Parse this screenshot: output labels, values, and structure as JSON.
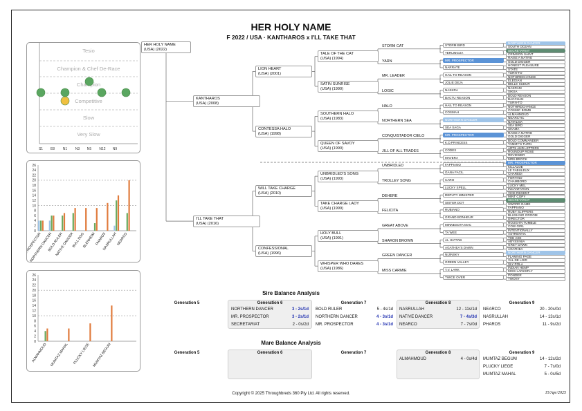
{
  "header": {
    "title": "HER HOLY NAME",
    "subtitle": "F 2022 / USA · KANTHAROS x I'LL TAKE THAT"
  },
  "ratings_chart": {
    "labels": [
      "Tesio",
      "Champion & Chef De-Race",
      "Champion",
      "Competitive",
      "Slow",
      "Very Slow"
    ],
    "x_labels": [
      "S1",
      "E8",
      "N1",
      "N3",
      "N5",
      "N12",
      "N9"
    ]
  },
  "chart_data": [
    {
      "type": "bar",
      "categories": [
        "MR. PROSPECTOR",
        "NORTHERN DANCER",
        "BOLD RULER",
        "NATIVE DANCER",
        "BULL DOG",
        "BLENHEIM",
        "PHAROS",
        "NASRULLAH",
        "NEARCO"
      ],
      "series": [
        {
          "color": "#9fc4e8",
          "values": [
            4,
            4,
            0,
            0,
            0,
            0,
            0,
            2,
            0
          ]
        },
        {
          "color": "#6aaa5e",
          "values": [
            4,
            6,
            6,
            7,
            0,
            3,
            0,
            12,
            7
          ]
        },
        {
          "color": "#e07b3c",
          "values": [
            4,
            6,
            7,
            9,
            9,
            9,
            11,
            14,
            20
          ]
        }
      ],
      "y_ticks": [
        "0",
        "2",
        "4",
        "6",
        "8",
        "10",
        "12",
        "14",
        "16",
        "18",
        "20",
        "22",
        "24",
        "26"
      ],
      "ylim": [
        0,
        26
      ]
    },
    {
      "type": "bar",
      "categories": [
        "ALMAHMOUD",
        "MUMTAZ MAHAL",
        "PLUCKY LIEGE",
        "MUMTAZ BEGUM"
      ],
      "series": [
        {
          "color": "#6aaa5e",
          "values": [
            4,
            0,
            0,
            0
          ]
        },
        {
          "color": "#e07b3c",
          "values": [
            5,
            5,
            7,
            14
          ]
        }
      ],
      "y_ticks": [
        "0",
        "2",
        "4",
        "6",
        "8",
        "10",
        "12",
        "14",
        "16",
        "18",
        "20",
        "22",
        "24",
        "26"
      ],
      "ylim": [
        0,
        26
      ]
    }
  ],
  "pedigree": {
    "subject": {
      "name": "HER HOLY NAME",
      "detail": "(USA) (2022)"
    },
    "sire": {
      "name": "KANTHAROS",
      "detail": "(USA) (2008)"
    },
    "dam": {
      "name": "I'LL TAKE THAT",
      "detail": "(USA) (2016)"
    },
    "gen2": [
      {
        "name": "LION HEART",
        "detail": "(USA) (2001)"
      },
      {
        "name": "CONTESSA HALO",
        "detail": "(USA) (1998)"
      },
      {
        "name": "WILL TAKE CHARGE",
        "detail": "(USA) (2010)"
      },
      {
        "name": "CONFESSIONAL",
        "detail": "(USA) (1996)"
      }
    ],
    "gen3": [
      {
        "name": "TALE OF THE CAT",
        "detail": "(USA) (1994)"
      },
      {
        "name": "SATIN SUNRISE",
        "detail": "(USA) (1990)"
      },
      {
        "name": "SOUTHERN HALO",
        "detail": "(USA) (1983)"
      },
      {
        "name": "QUEEN OF SAVOY",
        "detail": "(USA) (1990)"
      },
      {
        "name": "UNBRIDLED'S SONG",
        "detail": "(USA) (1993)"
      },
      {
        "name": "TAKE CHARGE LADY",
        "detail": "(USA) (1999)"
      },
      {
        "name": "HOLY BULL",
        "detail": "(USA) (1991)"
      },
      {
        "name": "WHISPER WHO DARES",
        "detail": "(USA) (1986)"
      }
    ],
    "gen4": [
      "STORM CAT",
      "YARN",
      "MR. LEADER",
      "LOGIC",
      "HALO",
      "NORTHERN SEA",
      "CONQUISTADOR CIELO",
      "JILL OF ALL TRADES",
      "UNBRIDLED",
      "TROLLEY SONG",
      "DEHERE",
      "FELICITA",
      "GREAT ABOVE",
      "SHARON BROWN",
      "GREEN DANCER",
      "MISS CARMIE"
    ],
    "gen5": [
      {
        "name": "STORM BIRD"
      },
      {
        "name": "TERLINGUA"
      },
      {
        "name": "MR. PROSPECTOR",
        "color": "#5b93d6"
      },
      {
        "name": "NARRATE"
      },
      {
        "name": "HAIL TO REASON"
      },
      {
        "name": "JOLIE DEJA"
      },
      {
        "name": "NASKRA"
      },
      {
        "name": "BACTU REASON"
      },
      {
        "name": "HAIL TO REASON"
      },
      {
        "name": "COSMAH"
      },
      {
        "name": "NORTHERN DANCER",
        "color": "#9fc4e8"
      },
      {
        "name": "SEA SAGA"
      },
      {
        "name": "MR. PROSPECTOR",
        "color": "#5b93d6"
      },
      {
        "name": "K.D.PRINCESS"
      },
      {
        "name": "CODEX"
      },
      {
        "name": "MAVERA"
      },
      {
        "name": "FAPPIANO"
      },
      {
        "name": "GANA FACIL"
      },
      {
        "name": "CARO"
      },
      {
        "name": "LUCKY SPELL"
      },
      {
        "name": "DEPUTY MINISTER"
      },
      {
        "name": "SISTER DOT"
      },
      {
        "name": "RUBIANO"
      },
      {
        "name": "GRAND BONHEUR"
      },
      {
        "name": "MINNESOTA MAC"
      },
      {
        "name": "TA WEE"
      },
      {
        "name": "AL HATTAB"
      },
      {
        "name": "AGATHEA'S DAWN"
      },
      {
        "name": "NIJINSKY"
      },
      {
        "name": "GREEN VALLEY"
      },
      {
        "name": "T.V. LARK"
      },
      {
        "name": "TWICE OVER"
      }
    ],
    "gen6": [
      {
        "name": "NORTHERN DANCER",
        "color": "#9fc4e8"
      },
      {
        "name": "SOUTH OCEAN"
      },
      {
        "name": "SECRETARIAT",
        "color": "#5e8c72"
      },
      {
        "name": "CRIMSON SAINT"
      },
      {
        "name": "RAISE A NATIVE"
      },
      {
        "name": "GOLD DIGGER"
      },
      {
        "name": "HONEST PLEASURE"
      },
      {
        "name": "STATE"
      },
      {
        "name": "TURN-TO"
      },
      {
        "name": "NOTHIRDCHANCE"
      },
      {
        "name": "ELEGIAN"
      },
      {
        "name": "BELLE SUEUR"
      },
      {
        "name": "NASRAM"
      },
      {
        "name": "SIKSA"
      },
      {
        "name": "BOLD REASON"
      },
      {
        "name": "BACCHAN"
      },
      {
        "name": "TURN-TO"
      },
      {
        "name": "NOTHIRDCHANCE"
      },
      {
        "name": "COSMIC BOMB"
      },
      {
        "name": "ALMAHMOUD"
      },
      {
        "name": "NEARCTIC"
      },
      {
        "name": "NATALMA"
      },
      {
        "name": "SEA BIRD"
      },
      {
        "name": "SHAMA"
      },
      {
        "name": "RAISE A NATIVE"
      },
      {
        "name": "GOLD DIGGER"
      },
      {
        "name": "BOLD COMMANDER"
      },
      {
        "name": "TAMMY'S TURN"
      },
      {
        "name": "ARTS AND LETTERS"
      },
      {
        "name": "ROUNDUP ROSE"
      },
      {
        "name": "REVIEWER"
      },
      {
        "name": "MRS.BROCK"
      },
      {
        "name": "MR. PROSPECTOR",
        "color": "#5b93d6"
      },
      {
        "name": "KILLALOE"
      },
      {
        "name": "LE FABULEUX"
      },
      {
        "name": "CHAREDI"
      },
      {
        "name": "FORTINO"
      },
      {
        "name": "CHAMBORD"
      },
      {
        "name": "LUCKY MEL"
      },
      {
        "name": "INCANTATION"
      },
      {
        "name": "VICE REGENT"
      },
      {
        "name": "MINT COPY"
      },
      {
        "name": "SECRETARIAT",
        "color": "#5e8c72"
      },
      {
        "name": "SWORD GAME"
      },
      {
        "name": "FAPPIANO"
      },
      {
        "name": "RUBY SLIPPERS"
      },
      {
        "name": "BLUSHING GROOM"
      },
      {
        "name": "DIRECTOR"
      },
      {
        "name": "ROUGH'N TUMBLE"
      },
      {
        "name": "COW GIRL"
      },
      {
        "name": "INTENTIONALLY"
      },
      {
        "name": "ASTRENTIA"
      },
      {
        "name": "THE AXE"
      },
      {
        "name": "ABYSSINIA"
      },
      {
        "name": "GREY DAWN"
      },
      {
        "name": "AGATHEA"
      },
      {
        "name": "NORTHERN DANCER",
        "color": "#9fc4e8"
      },
      {
        "name": "FLAMING PAGE"
      },
      {
        "name": "VAL DE LOIR"
      },
      {
        "name": "SLY POLA"
      },
      {
        "name": "INDIAN HEMP"
      },
      {
        "name": "MISS LARKSFLY"
      },
      {
        "name": "PONDER"
      },
      {
        "name": "TWOSY"
      }
    ]
  },
  "sire_balance": {
    "title": "Sire Balance Analysis",
    "gen5_label": "Generation 5",
    "gen6": {
      "label": "Generation 6",
      "rows": [
        {
          "name": "NORTHERN DANCER",
          "value": "3 - 2s/1d",
          "hl": true
        },
        {
          "name": "MR. PROSPECTOR",
          "value": "3 - 2s/1d",
          "hl": true
        },
        {
          "name": "SECRETARIAT",
          "value": "2 - 0s/2d",
          "hl": false
        }
      ]
    },
    "gen7": {
      "label": "Generation 7",
      "rows": [
        {
          "name": "BOLD RULER",
          "value": "5 - 4s/1d",
          "hl": false
        },
        {
          "name": "NORTHERN DANCER",
          "value": "4 - 3s/1d",
          "hl": true
        },
        {
          "name": "MR. PROSPECTOR",
          "value": "4 - 3s/1d",
          "hl": true
        }
      ]
    },
    "gen8": {
      "label": "Generation 8",
      "rows": [
        {
          "name": "NASRULLAH",
          "value": "12 - 11s/1d",
          "hl": false
        },
        {
          "name": "NATIVE DANCER",
          "value": "7 - 4s/3d",
          "hl": true
        },
        {
          "name": "NEARCO",
          "value": "7 - 7s/0d",
          "hl": false
        }
      ]
    },
    "gen9": {
      "label": "Generation 9",
      "rows": [
        {
          "name": "NEARCO",
          "value": "20 - 20s/0d",
          "hl": false
        },
        {
          "name": "NASRULLAH",
          "value": "14 - 13s/1d",
          "hl": false
        },
        {
          "name": "PHAROS",
          "value": "11 - 9s/2d",
          "hl": false
        }
      ]
    }
  },
  "mare_balance": {
    "title": "Mare Balance Analysis",
    "gen5_label": "Generation 5",
    "gen6_label": "Generation 6",
    "gen7_label": "Generation 7",
    "gen8": {
      "label": "Generation 8",
      "rows": [
        {
          "name": "ALMAHMOUD",
          "value": "4 - 0s/4d"
        }
      ]
    },
    "gen9": {
      "label": "Generation 9",
      "rows": [
        {
          "name": "MUMTAZ BEGUM",
          "value": "14 - 12s/2d"
        },
        {
          "name": "PLUCKY LIEGE",
          "value": "7 - 7s/0d"
        },
        {
          "name": "MUMTAZ MAHAL",
          "value": "5 - 0s/5d"
        }
      ]
    }
  },
  "footer": {
    "copyright": "Copyright © 2025 Throughbreds 360 Pty Ltd. All rights reserved.",
    "date": "15/Apr/2025"
  }
}
